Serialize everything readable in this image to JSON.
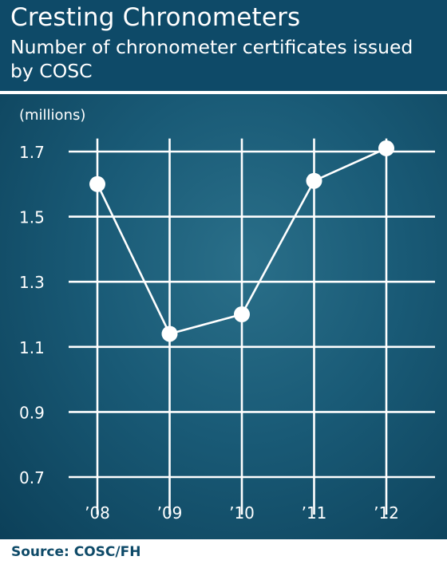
{
  "header": {
    "title": "Cresting Chronometers",
    "subtitle": "Number of chronometer certificates issued by COSC"
  },
  "footer": {
    "source": "Source: COSC/FH"
  },
  "colors": {
    "header_bg": "#0e4a68",
    "panel_bg": "#195a76",
    "line": "#ffffff",
    "source_text": "#0e4a68"
  },
  "chart_data": {
    "type": "line",
    "title": "Number of chronometer certificates issued by COSC",
    "ylabel": "(millions)",
    "xlabel": "",
    "categories": [
      "’08",
      "’09",
      "’10",
      "’11",
      "’12"
    ],
    "series": [
      {
        "values": [
          1.6,
          1.14,
          1.2,
          1.61,
          1.71
        ]
      }
    ],
    "yticks": [
      0.7,
      0.9,
      1.1,
      1.3,
      1.5,
      1.7
    ],
    "ytick_labels": [
      "0.7",
      "0.9",
      "1.1",
      "1.3",
      "1.5",
      "1.7"
    ],
    "ylim": [
      0.62,
      1.74
    ],
    "grid": true,
    "legend": "none"
  }
}
